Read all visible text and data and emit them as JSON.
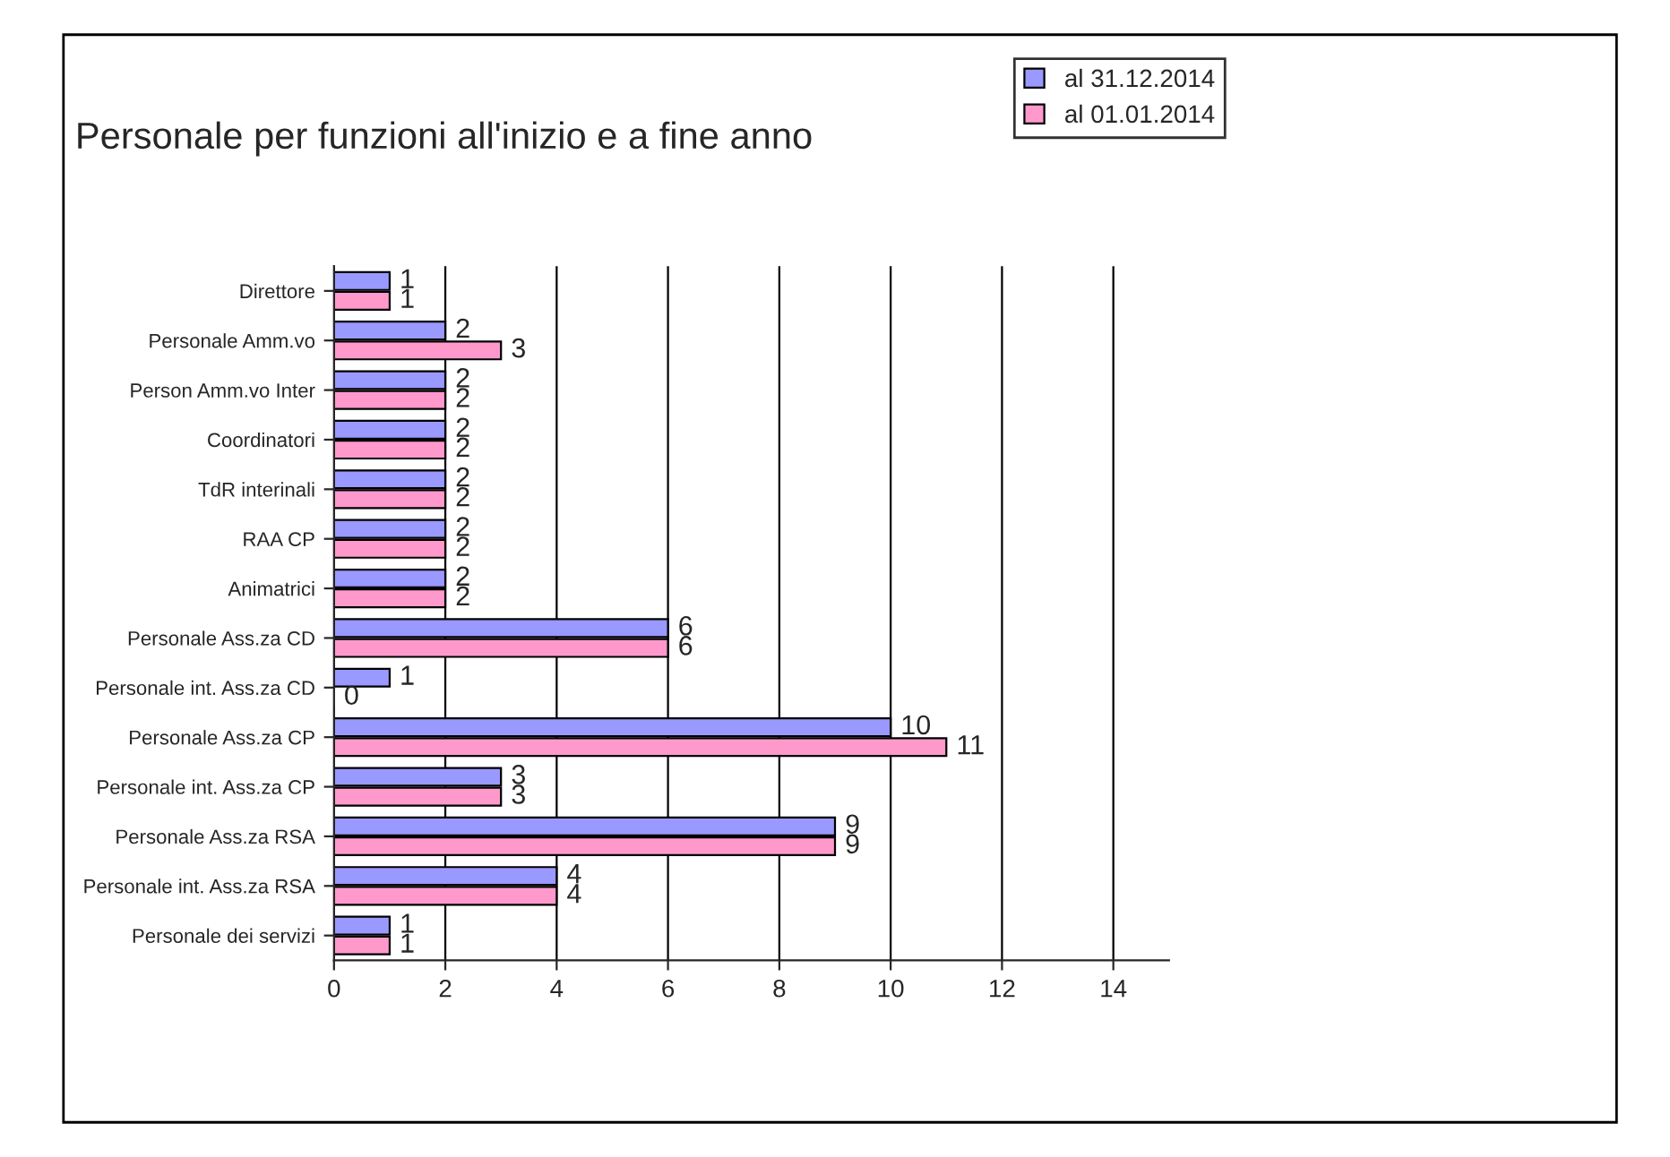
{
  "chart_data": {
    "type": "bar",
    "orientation": "horizontal",
    "title": "Personale per funzioni all'inizio e a fine anno",
    "categories": [
      "Direttore",
      "Personale Amm.vo",
      "Person Amm.vo Inter",
      "Coordinatori",
      "TdR interinali",
      "RAA CP",
      "Animatrici",
      "Personale Ass.za CD",
      "Personale int. Ass.za CD",
      "Personale Ass.za CP",
      "Personale int. Ass.za CP",
      "Personale Ass.za RSA",
      "Personale int. Ass.za RSA",
      "Personale dei servizi"
    ],
    "series": [
      {
        "name": "al 31.12.2014",
        "color": "#9999ff",
        "values": [
          1,
          2,
          2,
          2,
          2,
          2,
          2,
          6,
          1,
          10,
          3,
          9,
          4,
          1
        ]
      },
      {
        "name": "al 01.01.2014",
        "color": "#ff99cc",
        "values": [
          1,
          3,
          2,
          2,
          2,
          2,
          2,
          6,
          0,
          11,
          3,
          9,
          4,
          1
        ]
      }
    ],
    "xlim": [
      0,
      15
    ],
    "xticks": [
      0,
      2,
      4,
      6,
      8,
      10,
      12,
      14
    ],
    "grid": "x",
    "legend": "top right",
    "data_labels": true
  }
}
